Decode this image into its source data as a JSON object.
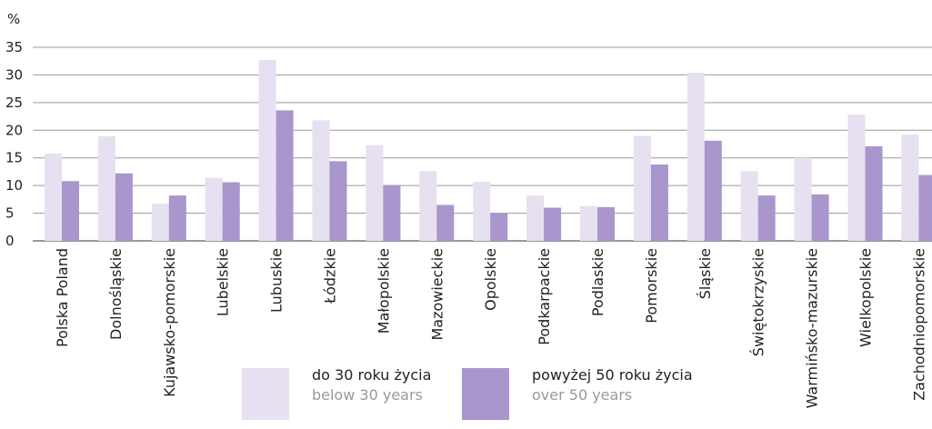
{
  "chart_data": {
    "type": "bar",
    "y_unit": "%",
    "categories": [
      "Polska Poland",
      "Dolnośląskie",
      "Kujawsko-pomorskie",
      "Lubelskie",
      "Lubuskie",
      "Łódzkie",
      "Małopolskie",
      "Mazowieckie",
      "Opolskie",
      "Podkarpackie",
      "Podlaskie",
      "Pomorskie",
      "Śląskie",
      "Świętokrzyskie",
      "Warmińsko-mazurskie",
      "Wielkopolskie",
      "Zachodniopomorskie"
    ],
    "series": [
      {
        "name": "do 30 roku życia",
        "name_en": "below 30 years",
        "color": "#e6e0f0",
        "values": [
          15.8,
          18.9,
          6.7,
          11.4,
          32.7,
          21.8,
          17.3,
          12.6,
          10.7,
          8.2,
          6.3,
          19.0,
          30.4,
          12.6,
          15.0,
          22.8,
          19.2
        ]
      },
      {
        "name": "powyżej 50 roku życia",
        "name_en": "over 50 years",
        "color": "#a996cc",
        "values": [
          10.8,
          12.2,
          8.2,
          10.6,
          23.6,
          14.4,
          10.1,
          6.5,
          5.0,
          6.0,
          6.1,
          13.8,
          18.1,
          8.2,
          8.4,
          17.1,
          11.9
        ]
      }
    ],
    "ylim": [
      0,
      35
    ],
    "yticks": [
      0,
      5,
      10,
      15,
      20,
      25,
      30,
      35
    ],
    "grid": true
  }
}
